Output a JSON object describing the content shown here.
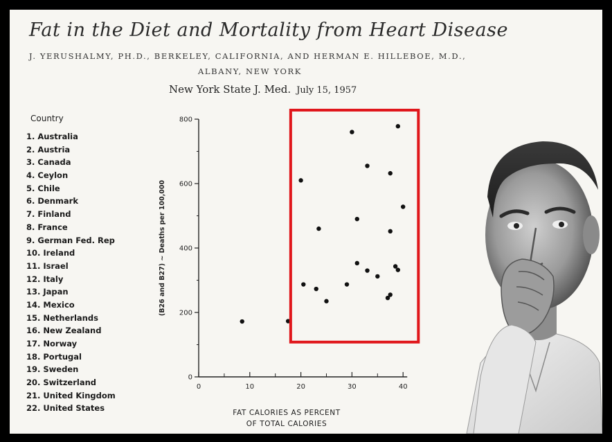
{
  "header": {
    "title": "Fat in the Diet and Mortality from Heart Disease",
    "authors_line1": "J. YERUSHALMY, PH.D., BERKELEY, CALIFORNIA, AND HERMAN E. HILLEBOE, M.D.,",
    "authors_line2": "ALBANY, NEW YORK",
    "journal": "New York State J. Med.",
    "date": "July 15, 1957"
  },
  "countries": {
    "heading": "Country",
    "items": [
      "1. Australia",
      "2. Austria",
      "3. Canada",
      "4. Ceylon",
      "5. Chile",
      "6. Denmark",
      "7. Finland",
      "8. France",
      "9. German Fed. Rep",
      "10. Ireland",
      "11. Israel",
      "12. Italy",
      "13. Japan",
      "14. Mexico",
      "15. Netherlands",
      "16. New Zealand",
      "17. Norway",
      "18. Portugal",
      "19. Sweden",
      "20. Switzerland",
      "21. United Kingdom",
      "22. United States"
    ]
  },
  "chart_data": {
    "type": "scatter",
    "title": "",
    "xlabel": "FAT CALORIES AS PERCENT OF TOTAL CALORIES",
    "xlabel_line1": "FAT CALORIES AS PERCENT",
    "xlabel_line2": "OF TOTAL CALORIES",
    "ylabel": "(B26 and B27) ~ Deaths per 100,000",
    "xlim": [
      0,
      40
    ],
    "ylim": [
      0,
      800
    ],
    "xticks": [
      0,
      10,
      20,
      30,
      40
    ],
    "yticks": [
      0,
      200,
      400,
      600,
      800
    ],
    "grid": false,
    "points": [
      {
        "x": 8.5,
        "y": 172
      },
      {
        "x": 17.5,
        "y": 173
      },
      {
        "x": 20,
        "y": 610
      },
      {
        "x": 20.5,
        "y": 287
      },
      {
        "x": 23,
        "y": 273
      },
      {
        "x": 23.5,
        "y": 460
      },
      {
        "x": 25,
        "y": 235
      },
      {
        "x": 29,
        "y": 287
      },
      {
        "x": 30,
        "y": 760
      },
      {
        "x": 31,
        "y": 490
      },
      {
        "x": 31,
        "y": 353
      },
      {
        "x": 33,
        "y": 655
      },
      {
        "x": 33,
        "y": 330
      },
      {
        "x": 35,
        "y": 312
      },
      {
        "x": 37,
        "y": 245
      },
      {
        "x": 37.5,
        "y": 632
      },
      {
        "x": 37.5,
        "y": 452
      },
      {
        "x": 37.5,
        "y": 255
      },
      {
        "x": 38.5,
        "y": 343
      },
      {
        "x": 39,
        "y": 332
      },
      {
        "x": 39,
        "y": 778
      },
      {
        "x": 40,
        "y": 528
      }
    ],
    "highlight": {
      "x_from": 18,
      "x_to": 43,
      "y_from": 108,
      "y_to": 828,
      "color": "#e0161b"
    }
  },
  "photo": {
    "subject": "portrait-of-man-in-white-coat"
  }
}
